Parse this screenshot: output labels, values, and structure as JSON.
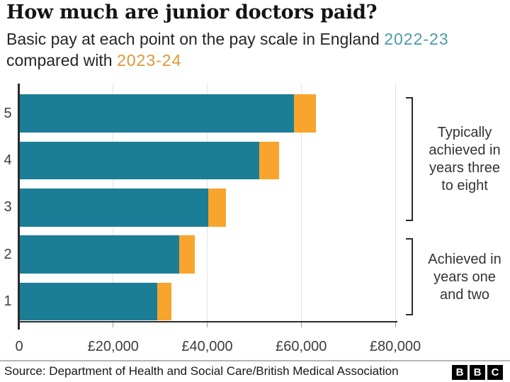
{
  "title": "How much are junior doctors paid?",
  "subtitle": {
    "line1_text": "Basic pay at each point on the pay scale in England ",
    "series1_label": "2022-23",
    "line2_text": "compared with ",
    "series2_label": "2023-24"
  },
  "colors": {
    "bar_teal": "#1b7e96",
    "bar_orange": "#f8a42d",
    "subtitle_teal": "#4d9aaa",
    "subtitle_orange": "#de9738"
  },
  "chart_data": {
    "type": "bar",
    "orientation": "horizontal",
    "title": "How much are junior doctors paid?",
    "subtitle": "Basic pay at each point on the pay scale in England 2022-23 compared with 2023-24",
    "categories": [
      "1",
      "2",
      "3",
      "4",
      "5"
    ],
    "series": [
      {
        "name": "2022-23",
        "values": [
          29384,
          34012,
          40257,
          51017,
          58398
        ]
      },
      {
        "name": "2023-24",
        "values": [
          32398,
          37303,
          43923,
          55329,
          63152
        ]
      }
    ],
    "xlim": [
      0,
      80000
    ],
    "x_ticks": [
      {
        "value": 0,
        "label": "0"
      },
      {
        "value": 20000,
        "label": "£20,000"
      },
      {
        "value": 40000,
        "label": "£40,000"
      },
      {
        "value": 60000,
        "label": "£60,000"
      },
      {
        "value": 80000,
        "label": "£80,000"
      }
    ],
    "grid": "vertical gridlines at ticks, behind bars",
    "legend": "series colours referenced by coloured years in subtitle"
  },
  "annotations": [
    {
      "lines": [
        "Typically",
        "achieved in",
        "years three",
        "to eight"
      ],
      "covers_categories": [
        "3",
        "4",
        "5"
      ]
    },
    {
      "lines": [
        "Achieved in",
        "years one",
        "and two"
      ],
      "covers_categories": [
        "1",
        "2"
      ]
    }
  ],
  "footer": {
    "source_label": "Source: Department of Health and Social Care/British Medical Association",
    "logo_letters": [
      "B",
      "B",
      "C"
    ]
  }
}
